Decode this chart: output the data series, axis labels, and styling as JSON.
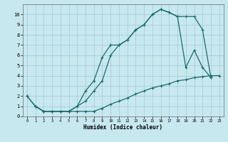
{
  "background_color": "#c8e8f0",
  "grid_color": "#a0c8d8",
  "line_color": "#1a6b6b",
  "xlabel": "Humidex (Indice chaleur)",
  "xlim": [
    -0.5,
    23.5
  ],
  "ylim": [
    0,
    11
  ],
  "xticks": [
    0,
    1,
    2,
    3,
    4,
    5,
    6,
    7,
    8,
    9,
    10,
    11,
    12,
    13,
    14,
    15,
    16,
    17,
    18,
    19,
    20,
    21,
    22,
    23
  ],
  "yticks": [
    0,
    1,
    2,
    3,
    4,
    5,
    6,
    7,
    8,
    9,
    10
  ],
  "curve1_x": [
    0,
    1,
    2,
    3,
    4,
    5,
    6,
    7,
    8,
    9,
    10,
    11,
    12,
    13,
    14,
    15,
    16,
    17,
    18,
    19,
    20,
    21,
    22
  ],
  "curve1_y": [
    2,
    1,
    0.5,
    0.5,
    0.5,
    0.5,
    1,
    1.5,
    2.5,
    3.5,
    6,
    7,
    7.5,
    8.5,
    9,
    10,
    10.5,
    10.2,
    9.8,
    4.8,
    6.5,
    4.8,
    3.8
  ],
  "curve2_x": [
    0,
    1,
    2,
    3,
    4,
    5,
    6,
    7,
    8,
    9,
    10,
    11,
    12,
    13,
    14,
    15,
    16,
    17,
    18,
    19,
    20,
    21,
    22
  ],
  "curve2_y": [
    2,
    1,
    0.5,
    0.5,
    0.5,
    0.5,
    1,
    2.5,
    3.5,
    5.8,
    7,
    7,
    7.5,
    8.5,
    9,
    10,
    10.5,
    10.2,
    9.8,
    9.8,
    9.8,
    8.5,
    3.8
  ],
  "curve3_x": [
    1,
    2,
    3,
    4,
    5,
    6,
    7,
    8,
    9,
    10,
    11,
    12,
    13,
    14,
    15,
    16,
    17,
    18,
    19,
    20,
    21,
    22,
    23
  ],
  "curve3_y": [
    1,
    0.5,
    0.5,
    0.5,
    0.5,
    0.5,
    0.5,
    0.5,
    0.8,
    1.2,
    1.5,
    1.8,
    2.2,
    2.5,
    2.8,
    3.0,
    3.2,
    3.5,
    3.6,
    3.8,
    3.9,
    4.0,
    4.0
  ]
}
